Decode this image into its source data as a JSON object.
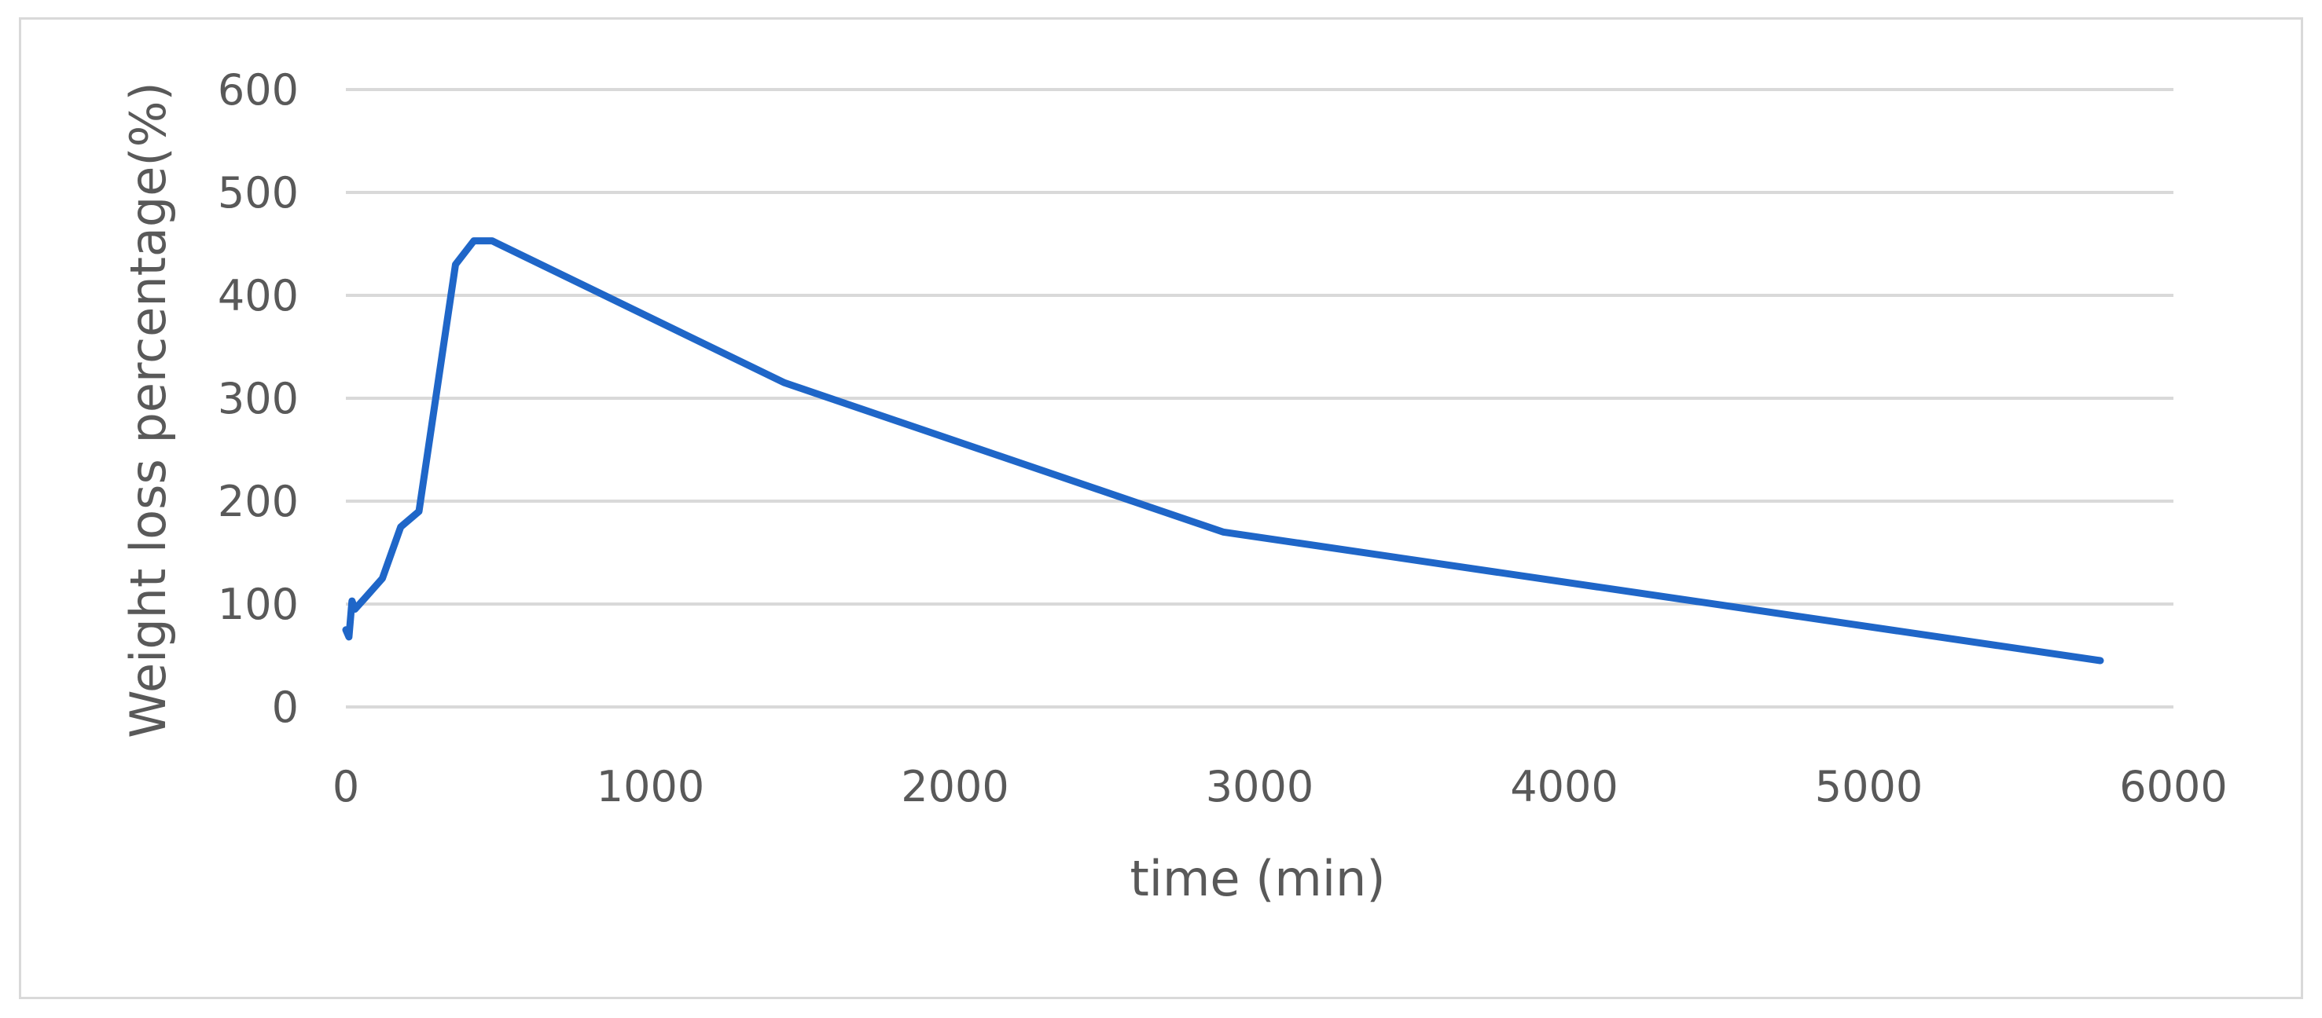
{
  "chart_data": {
    "type": "line",
    "title": "",
    "xlabel": "time (min)",
    "ylabel": "Weight loss percentage(%)",
    "xlim": [
      0,
      6000
    ],
    "ylim": [
      0,
      600
    ],
    "xticks": [
      0,
      1000,
      2000,
      3000,
      4000,
      5000,
      6000
    ],
    "yticks": [
      0,
      100,
      200,
      300,
      400,
      500,
      600
    ],
    "grid": "horizontal",
    "legend": "none",
    "series": [
      {
        "color": "#1f66c8",
        "x": [
          0,
          10,
          20,
          30,
          60,
          120,
          180,
          240,
          360,
          420,
          480,
          1440,
          2880,
          5760
        ],
        "y": [
          75,
          68,
          103,
          95,
          105,
          125,
          175,
          190,
          430,
          453,
          453,
          315,
          170,
          45
        ]
      }
    ]
  }
}
